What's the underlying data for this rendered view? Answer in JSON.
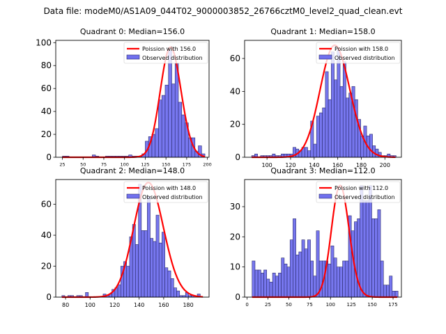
{
  "suptitle": "Data file: modeM0/AS1A09_044T02_9000003852_26766cztM0_level2_quad_clean.evt",
  "colors": {
    "bar_fill": "#7070ee",
    "bar_edge": "#2a2a6a",
    "poisson_line": "#ff0000"
  },
  "chart_data": [
    {
      "type": "bar",
      "title": "Quadrant 0: Median=156.0",
      "xlabel": "",
      "ylabel": "",
      "xlim": [
        17,
        202
      ],
      "ylim": [
        0,
        102
      ],
      "xticks": [
        25,
        50,
        75,
        100,
        125,
        150,
        175,
        200
      ],
      "yticks": [
        0,
        20,
        40,
        60,
        80,
        100
      ],
      "grid": false,
      "legend": {
        "placement": "top-right",
        "entries": [
          "Poission with 156.0",
          "Observed distribution"
        ]
      },
      "bin_width": 4,
      "bins": [
        [
          25,
          1
        ],
        [
          29,
          1
        ],
        [
          33,
          0
        ],
        [
          37,
          0
        ],
        [
          41,
          0
        ],
        [
          45,
          0
        ],
        [
          49,
          0
        ],
        [
          53,
          0
        ],
        [
          57,
          0
        ],
        [
          61,
          2
        ],
        [
          65,
          1
        ],
        [
          69,
          0
        ],
        [
          73,
          0
        ],
        [
          77,
          1
        ],
        [
          81,
          1
        ],
        [
          85,
          1
        ],
        [
          89,
          1
        ],
        [
          93,
          1
        ],
        [
          97,
          1
        ],
        [
          101,
          1
        ],
        [
          105,
          2
        ],
        [
          109,
          1
        ],
        [
          113,
          1
        ],
        [
          117,
          1
        ],
        [
          121,
          3
        ],
        [
          125,
          14
        ],
        [
          129,
          18
        ],
        [
          133,
          20
        ],
        [
          137,
          25
        ],
        [
          141,
          50
        ],
        [
          145,
          54
        ],
        [
          149,
          63
        ],
        [
          153,
          93
        ],
        [
          157,
          64
        ],
        [
          161,
          82
        ],
        [
          165,
          48
        ],
        [
          169,
          37
        ],
        [
          173,
          30
        ],
        [
          177,
          17
        ],
        [
          181,
          17
        ],
        [
          185,
          5
        ],
        [
          189,
          10
        ],
        [
          193,
          3
        ]
      ],
      "poisson": {
        "mean": 156.0,
        "peak": 96,
        "x_range": [
          25,
          197
        ]
      }
    },
    {
      "type": "bar",
      "title": "Quadrant 1: Median=158.0",
      "xlabel": "",
      "ylabel": "",
      "xlim": [
        81,
        214
      ],
      "ylim": [
        0,
        71
      ],
      "xticks": [
        100,
        120,
        140,
        160,
        180,
        200
      ],
      "yticks": [
        0,
        20,
        40,
        60
      ],
      "grid": false,
      "legend": {
        "placement": "top-right",
        "entries": [
          "Poission with 158.0",
          "Observed distribution"
        ]
      },
      "bin_width": 2.5,
      "bins": [
        [
          87,
          1
        ],
        [
          89.5,
          2
        ],
        [
          92,
          0
        ],
        [
          94.5,
          1
        ],
        [
          97,
          1
        ],
        [
          99.5,
          1
        ],
        [
          102,
          1
        ],
        [
          104.5,
          2
        ],
        [
          107,
          1
        ],
        [
          109.5,
          1
        ],
        [
          112,
          2
        ],
        [
          114.5,
          2
        ],
        [
          117,
          2
        ],
        [
          119.5,
          2
        ],
        [
          122,
          6
        ],
        [
          124.5,
          5
        ],
        [
          127,
          4
        ],
        [
          129.5,
          6
        ],
        [
          132,
          6
        ],
        [
          134.5,
          4
        ],
        [
          137,
          22
        ],
        [
          139.5,
          8
        ],
        [
          142,
          25
        ],
        [
          144.5,
          27
        ],
        [
          147,
          30
        ],
        [
          149.5,
          52
        ],
        [
          152,
          35
        ],
        [
          154.5,
          64
        ],
        [
          157,
          47
        ],
        [
          159.5,
          65
        ],
        [
          162,
          43
        ],
        [
          164.5,
          58
        ],
        [
          167,
          36
        ],
        [
          169.5,
          39
        ],
        [
          172,
          43
        ],
        [
          174.5,
          35
        ],
        [
          177,
          23
        ],
        [
          179.5,
          13
        ],
        [
          182,
          19
        ],
        [
          184.5,
          13
        ],
        [
          187,
          14
        ],
        [
          189.5,
          7
        ],
        [
          192,
          5
        ],
        [
          194.5,
          3
        ],
        [
          197,
          1
        ],
        [
          199.5,
          1
        ],
        [
          202,
          2
        ],
        [
          204.5,
          1
        ],
        [
          207,
          1
        ]
      ],
      "poisson": {
        "mean": 158.0,
        "peak": 68,
        "x_range": [
          87,
          209
        ]
      }
    },
    {
      "type": "bar",
      "title": "Quadrant 2: Median=148.0",
      "xlabel": "",
      "ylabel": "",
      "xlim": [
        72,
        197
      ],
      "ylim": [
        0,
        76
      ],
      "xticks": [
        80,
        100,
        120,
        140,
        160,
        180
      ],
      "yticks": [
        0,
        20,
        40,
        60
      ],
      "grid": false,
      "legend": {
        "placement": "top-right",
        "entries": [
          "Poission with 148.0",
          "Observed distribution"
        ]
      },
      "bin_width": 2.4,
      "bins": [
        [
          77,
          1
        ],
        [
          79.4,
          0
        ],
        [
          81.8,
          1
        ],
        [
          84.2,
          1
        ],
        [
          86.6,
          0
        ],
        [
          89,
          1
        ],
        [
          91.4,
          1
        ],
        [
          93.8,
          0
        ],
        [
          96.2,
          3
        ],
        [
          98.6,
          0
        ],
        [
          101,
          0
        ],
        [
          103.4,
          0
        ],
        [
          105.8,
          0
        ],
        [
          108.2,
          0
        ],
        [
          110.6,
          2
        ],
        [
          113,
          1
        ],
        [
          115.4,
          2
        ],
        [
          117.8,
          5
        ],
        [
          120.2,
          6
        ],
        [
          122.6,
          8
        ],
        [
          125,
          20
        ],
        [
          127.4,
          23
        ],
        [
          129.8,
          20
        ],
        [
          132.2,
          39
        ],
        [
          134.6,
          47
        ],
        [
          137,
          34
        ],
        [
          139.4,
          73
        ],
        [
          141.8,
          43
        ],
        [
          144.2,
          43
        ],
        [
          146.6,
          65
        ],
        [
          149,
          38
        ],
        [
          151.4,
          36
        ],
        [
          153.8,
          53
        ],
        [
          156.2,
          35
        ],
        [
          158.6,
          42
        ],
        [
          161,
          19
        ],
        [
          163.4,
          17
        ],
        [
          165.8,
          12
        ],
        [
          168.2,
          6
        ],
        [
          170.6,
          4
        ],
        [
          173,
          1
        ],
        [
          175.4,
          1
        ],
        [
          177.8,
          3
        ],
        [
          180.2,
          1
        ],
        [
          182.6,
          1
        ],
        [
          185,
          0
        ],
        [
          187.4,
          2
        ]
      ],
      "poisson": {
        "mean": 148.0,
        "peak": 74,
        "x_range": [
          77,
          192
        ]
      }
    },
    {
      "type": "bar",
      "title": "Quadrant 3: Median=112.0",
      "xlabel": "",
      "ylabel": "",
      "xlim": [
        -3,
        185
      ],
      "ylim": [
        0,
        39
      ],
      "xticks": [
        0,
        25,
        50,
        75,
        100,
        125,
        150,
        175
      ],
      "yticks": [
        0,
        10,
        20,
        30
      ],
      "grid": false,
      "legend": {
        "placement": "top-right",
        "entries": [
          "Poission with 112.0",
          "Observed distribution"
        ]
      },
      "bin_width": 3.5,
      "bins": [
        [
          6,
          12
        ],
        [
          9.5,
          9
        ],
        [
          13,
          9
        ],
        [
          16.5,
          8
        ],
        [
          20,
          9
        ],
        [
          23.5,
          6
        ],
        [
          27,
          5
        ],
        [
          30.5,
          8
        ],
        [
          34,
          7
        ],
        [
          37.5,
          8
        ],
        [
          41,
          13
        ],
        [
          44.5,
          11
        ],
        [
          48,
          10
        ],
        [
          51.5,
          19
        ],
        [
          55,
          26
        ],
        [
          58.5,
          14
        ],
        [
          62,
          15
        ],
        [
          65.5,
          19
        ],
        [
          69,
          16
        ],
        [
          72.5,
          19
        ],
        [
          76,
          12
        ],
        [
          79.5,
          7
        ],
        [
          83,
          22
        ],
        [
          86.5,
          12
        ],
        [
          90,
          12
        ],
        [
          93.5,
          12
        ],
        [
          97,
          11
        ],
        [
          100.5,
          17
        ],
        [
          104,
          13
        ],
        [
          107.5,
          10
        ],
        [
          111,
          10
        ],
        [
          114.5,
          12
        ],
        [
          118,
          12
        ],
        [
          121.5,
          27
        ],
        [
          125,
          22
        ],
        [
          128.5,
          25
        ],
        [
          132,
          26
        ],
        [
          135.5,
          37
        ],
        [
          139,
          32
        ],
        [
          142.5,
          32
        ],
        [
          146,
          37
        ],
        [
          149.5,
          26
        ],
        [
          153,
          26
        ],
        [
          156.5,
          29
        ],
        [
          160,
          12
        ],
        [
          163.5,
          4
        ],
        [
          167,
          4
        ],
        [
          170.5,
          7
        ],
        [
          174,
          2
        ],
        [
          177.5,
          2
        ]
      ],
      "poisson": {
        "mean": 112.0,
        "peak": 37,
        "x_range": [
          6,
          180
        ]
      }
    }
  ]
}
